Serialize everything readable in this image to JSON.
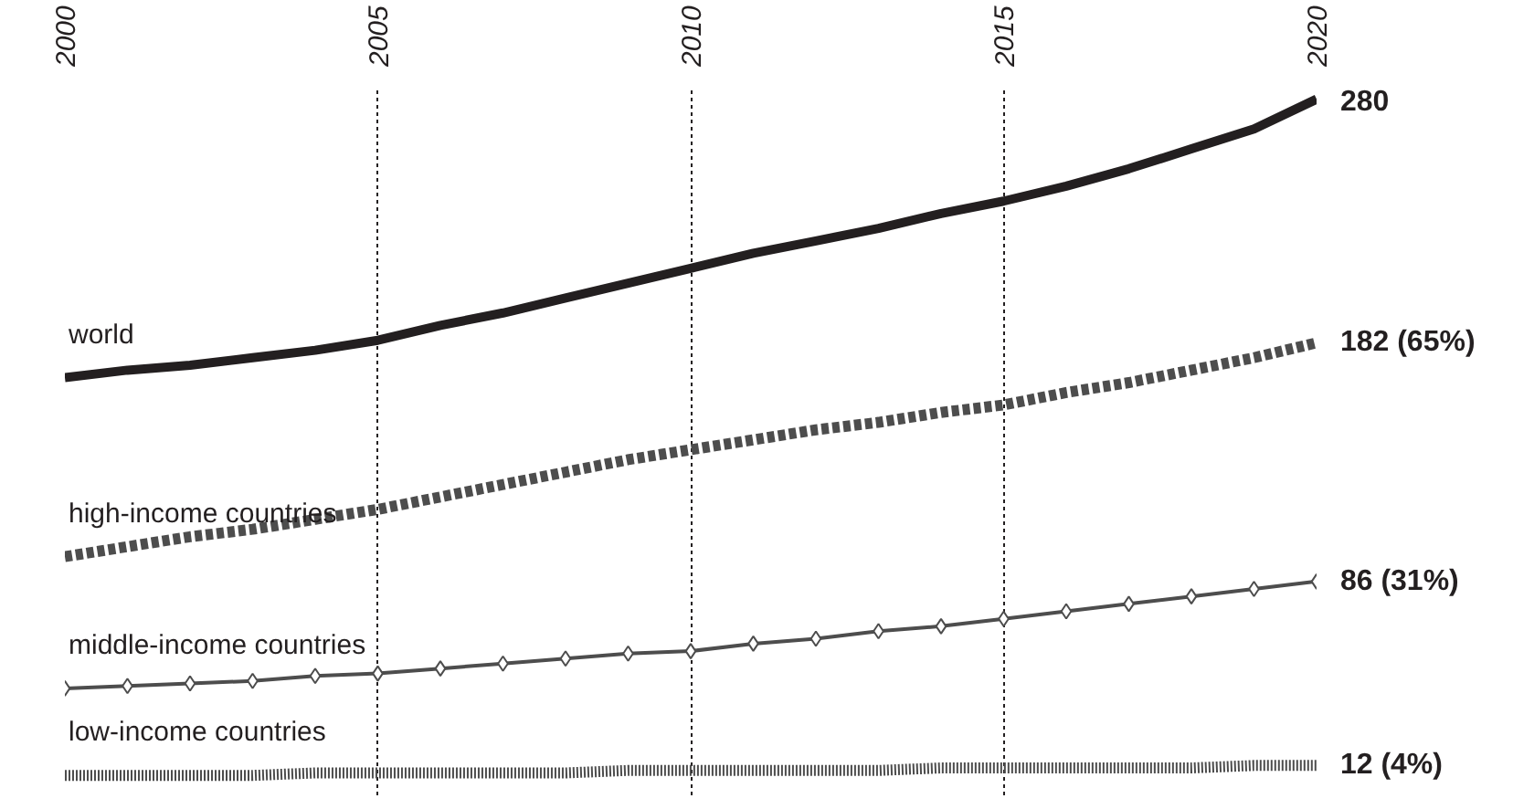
{
  "chart_data": {
    "type": "line",
    "x": [
      2000,
      2001,
      2002,
      2003,
      2004,
      2005,
      2006,
      2007,
      2008,
      2009,
      2010,
      2011,
      2012,
      2013,
      2014,
      2015,
      2016,
      2017,
      2018,
      2019,
      2020
    ],
    "series": [
      {
        "name": "world",
        "color": "#231f20",
        "line_style": "solid",
        "marker": "none",
        "values": [
          168,
          171,
          173,
          176,
          179,
          183,
          189,
          194,
          200,
          206,
          212,
          218,
          223,
          228,
          234,
          239,
          245,
          252,
          260,
          268,
          280
        ],
        "value_labels": [
          null,
          null,
          null,
          null,
          null,
          null,
          null,
          null,
          null,
          null,
          null,
          null,
          null,
          null,
          null,
          null,
          null,
          null,
          null,
          null,
          "280"
        ]
      },
      {
        "name": "high-income countries",
        "color": "#4d4d4d",
        "line_style": "dashed",
        "marker": "none",
        "values": [
          96,
          100,
          104,
          107,
          111,
          115,
          120,
          125,
          130,
          135,
          139,
          143,
          147,
          150,
          154,
          157,
          162,
          166,
          171,
          176,
          182
        ],
        "value_labels": [
          null,
          null,
          null,
          null,
          null,
          null,
          null,
          null,
          null,
          null,
          null,
          null,
          null,
          null,
          null,
          null,
          null,
          null,
          null,
          null,
          "182 (65%)"
        ]
      },
      {
        "name": "middle-income countries",
        "color": "#4d4d4d",
        "line_style": "solid",
        "marker": "diamond",
        "values": [
          43,
          44,
          45,
          46,
          48,
          49,
          51,
          53,
          55,
          57,
          58,
          61,
          63,
          66,
          68,
          71,
          74,
          77,
          80,
          83,
          86
        ],
        "value_labels": [
          null,
          null,
          null,
          null,
          null,
          null,
          null,
          null,
          null,
          null,
          null,
          null,
          null,
          null,
          null,
          null,
          null,
          null,
          null,
          null,
          "86 (31%)"
        ]
      },
      {
        "name": "low-income countries",
        "color": "#4d4d4d",
        "line_style": "dotted",
        "marker": "none",
        "values": [
          8,
          8,
          8,
          8,
          9,
          9,
          9,
          9,
          9,
          10,
          10,
          10,
          10,
          10,
          11,
          11,
          11,
          11,
          11,
          12,
          12
        ],
        "value_labels": [
          null,
          null,
          null,
          null,
          null,
          null,
          null,
          null,
          null,
          null,
          null,
          null,
          null,
          null,
          null,
          null,
          null,
          null,
          null,
          null,
          "12 (4%)"
        ]
      }
    ],
    "xlim": [
      2000,
      2020
    ],
    "xticks": [
      2000,
      2005,
      2010,
      2015,
      2020
    ],
    "ylim": [
      0,
      285
    ],
    "tick_labels": "x",
    "grid": "x"
  }
}
